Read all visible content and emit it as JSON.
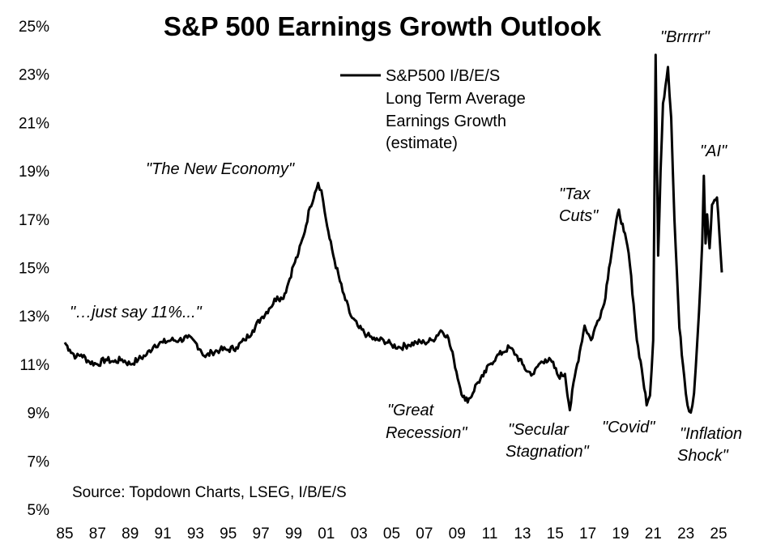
{
  "chart_data": {
    "type": "line",
    "title": "S&P 500 Earnings Growth Outlook",
    "xlabel": "",
    "ylabel": "",
    "ylim": [
      5,
      25
    ],
    "xlim": [
      1985,
      2025.5
    ],
    "y_ticks": [
      "5%",
      "7%",
      "9%",
      "11%",
      "13%",
      "15%",
      "17%",
      "19%",
      "21%",
      "23%",
      "25%"
    ],
    "x_ticks": [
      "85",
      "87",
      "89",
      "91",
      "93",
      "95",
      "97",
      "99",
      "01",
      "03",
      "05",
      "07",
      "09",
      "11",
      "13",
      "15",
      "17",
      "19",
      "21",
      "23",
      "25"
    ],
    "grid": false,
    "legend": {
      "placement": "top-center",
      "lines": [
        "S&P500 I/B/E/S",
        "Long Term Average",
        "Earnings Growth",
        "(estimate)"
      ]
    },
    "annotations": [
      {
        "lines": [
          "\"…just say 11%...\""
        ]
      },
      {
        "lines": [
          "\"The New Economy\""
        ]
      },
      {
        "lines": [
          "\"Great",
          "Recession\""
        ]
      },
      {
        "lines": [
          "\"Secular",
          "Stagnation\""
        ]
      },
      {
        "lines": [
          "\"Tax",
          "Cuts\""
        ]
      },
      {
        "lines": [
          "\"Covid\""
        ]
      },
      {
        "lines": [
          "\"Brrrrr\""
        ]
      },
      {
        "lines": [
          "\"AI\""
        ]
      },
      {
        "lines": [
          "\"Inflation",
          "Shock\""
        ]
      }
    ],
    "source": "Source: Topdown Charts, LSEG, I/B/E/S",
    "series": [
      {
        "name": "S&P500 I/B/E/S Long Term Average Earnings Growth (estimate)",
        "color": "#000000",
        "x": [
          1985.0,
          1985.3,
          1985.7,
          1986.0,
          1986.5,
          1987.0,
          1987.5,
          1988.0,
          1988.5,
          1989.0,
          1989.5,
          1990.0,
          1990.5,
          1991.0,
          1991.5,
          1992.0,
          1992.5,
          1993.0,
          1993.3,
          1993.6,
          1994.0,
          1994.5,
          1995.0,
          1995.5,
          1996.0,
          1996.5,
          1997.0,
          1997.5,
          1998.0,
          1998.3,
          1998.6,
          1999.0,
          1999.3,
          1999.6,
          2000.0,
          2000.3,
          2000.5,
          2000.7,
          2000.9,
          2001.2,
          2001.5,
          2002.0,
          2002.5,
          2003.0,
          2003.5,
          2004.0,
          2004.5,
          2005.0,
          2005.5,
          2006.0,
          2006.5,
          2007.0,
          2007.5,
          2008.0,
          2008.4,
          2008.8,
          2009.2,
          2009.5,
          2009.8,
          2010.2,
          2010.6,
          2011.0,
          2011.4,
          2011.8,
          2012.2,
          2012.6,
          2013.0,
          2013.3,
          2013.7,
          2014.0,
          2014.4,
          2014.8,
          2015.2,
          2015.6,
          2015.9,
          2016.2,
          2016.5,
          2016.8,
          2017.2,
          2017.6,
          2018.0,
          2018.3,
          2018.6,
          2018.9,
          2019.2,
          2019.5,
          2019.8,
          2020.0,
          2020.3,
          2020.6,
          2020.8,
          2021.0,
          2021.15,
          2021.3,
          2021.45,
          2021.6,
          2021.75,
          2021.9,
          2022.1,
          2022.3,
          2022.6,
          2022.9,
          2023.1,
          2023.3,
          2023.5,
          2023.7,
          2023.9,
          2024.0,
          2024.1,
          2024.2,
          2024.3,
          2024.45,
          2024.6,
          2024.75,
          2024.9,
          2025.05,
          2025.2
        ],
        "y": [
          11.9,
          11.6,
          11.3,
          11.4,
          11.1,
          11.0,
          11.2,
          11.1,
          11.2,
          11.0,
          11.2,
          11.4,
          11.8,
          11.9,
          12.0,
          12.0,
          12.1,
          11.9,
          11.6,
          11.3,
          11.5,
          11.6,
          11.6,
          11.7,
          12.0,
          12.4,
          12.9,
          13.3,
          13.8,
          13.7,
          14.2,
          15.1,
          15.6,
          16.3,
          17.5,
          18.1,
          18.5,
          18.2,
          17.3,
          16.2,
          15.3,
          14.0,
          13.0,
          12.5,
          12.2,
          12.0,
          12.0,
          11.8,
          11.7,
          11.8,
          11.9,
          11.9,
          12.0,
          12.4,
          12.2,
          11.2,
          10.0,
          9.5,
          9.6,
          10.2,
          10.5,
          11.0,
          11.3,
          11.5,
          11.7,
          11.4,
          11.0,
          10.7,
          10.6,
          11.0,
          11.2,
          11.1,
          10.5,
          10.6,
          9.1,
          10.5,
          11.5,
          12.6,
          12.0,
          12.8,
          13.5,
          15.0,
          16.3,
          17.4,
          16.5,
          15.6,
          13.5,
          12.0,
          10.8,
          9.3,
          9.7,
          12.0,
          23.8,
          15.5,
          19.0,
          21.8,
          22.5,
          23.3,
          21.2,
          17.0,
          12.5,
          10.5,
          9.3,
          9.0,
          9.8,
          12.0,
          14.5,
          16.0,
          18.8,
          16.0,
          17.2,
          15.8,
          17.6,
          17.8,
          17.9,
          16.4,
          14.8
        ]
      }
    ]
  }
}
